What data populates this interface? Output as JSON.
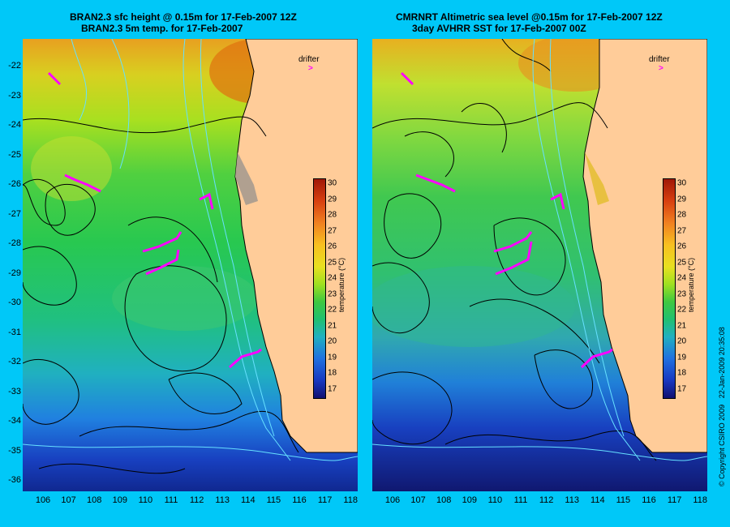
{
  "left_panel": {
    "title_line1": "BRAN2.3 sfc height @ 0.15m for 17-Feb-2007 12Z",
    "title_line2": "BRAN2.3 5m temp. for 17-Feb-2007",
    "legend_label": "drifter",
    "colorbar_label": "temperature (°C)"
  },
  "right_panel": {
    "title_line1": "CMRNRT Altimetric sea level  @0.15m  for 17-Feb-2007 12Z",
    "title_line2": "3day AVHRR SST for 17-Feb-2007 00Z",
    "legend_label": "drifter",
    "colorbar_label": "temperature (°C)"
  },
  "latitude_ticks": [
    "-22",
    "-23",
    "-24",
    "-25",
    "-26",
    "-27",
    "-28",
    "-29",
    "-30",
    "-31",
    "-32",
    "-33",
    "-34",
    "-35",
    "-36"
  ],
  "longitude_ticks": [
    "106",
    "107",
    "108",
    "109",
    "110",
    "111",
    "112",
    "113",
    "114",
    "115",
    "116",
    "117",
    "118"
  ],
  "colorbar_ticks": [
    "30",
    "29",
    "28",
    "27",
    "26",
    "25",
    "24",
    "23",
    "22",
    "21",
    "20",
    "19",
    "18",
    "17"
  ],
  "colors": {
    "background": "#00c8f8",
    "land": "#ffcc99",
    "contour": "#000000",
    "bathymetry": "#66e0ff",
    "drifter": "#ff00ff"
  },
  "copyright": "© Copyright CSIRO 2009",
  "timestamp": "22-Jan-2009 20:35:08"
}
